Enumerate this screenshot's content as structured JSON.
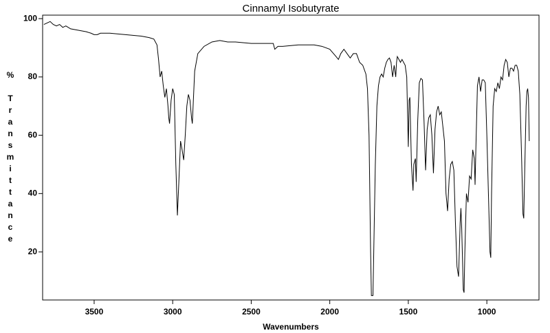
{
  "chart_data": {
    "type": "line",
    "title": "Cinnamyl Isobutyrate",
    "x_label": "Wavenumbers",
    "y_label": "% Transmittance",
    "color": "#000000",
    "xlim": [
      3828,
      668
    ],
    "ylim": [
      3.5,
      101.2
    ],
    "xticks": [
      3500,
      3000,
      2500,
      2000,
      1500,
      1000
    ],
    "yticks": [
      20,
      40,
      60,
      80,
      100
    ],
    "x": [
      3820,
      3800,
      3780,
      3760,
      3740,
      3720,
      3700,
      3680,
      3650,
      3600,
      3550,
      3520,
      3500,
      3480,
      3460,
      3400,
      3300,
      3200,
      3150,
      3120,
      3100,
      3090,
      3080,
      3070,
      3060,
      3050,
      3040,
      3030,
      3025,
      3020,
      3010,
      3000,
      2990,
      2980,
      2970,
      2960,
      2950,
      2940,
      2930,
      2920,
      2910,
      2900,
      2890,
      2880,
      2875,
      2870,
      2860,
      2840,
      2800,
      2750,
      2700,
      2650,
      2600,
      2500,
      2400,
      2360,
      2350,
      2330,
      2300,
      2200,
      2100,
      2050,
      2000,
      1960,
      1945,
      1930,
      1910,
      1890,
      1870,
      1850,
      1830,
      1810,
      1790,
      1770,
      1760,
      1750,
      1740,
      1735,
      1725,
      1720,
      1710,
      1700,
      1690,
      1680,
      1670,
      1660,
      1650,
      1640,
      1630,
      1620,
      1610,
      1600,
      1590,
      1580,
      1575,
      1570,
      1560,
      1550,
      1540,
      1520,
      1510,
      1500,
      1495,
      1490,
      1480,
      1470,
      1465,
      1455,
      1450,
      1440,
      1430,
      1420,
      1410,
      1400,
      1390,
      1380,
      1370,
      1360,
      1350,
      1340,
      1330,
      1320,
      1310,
      1300,
      1290,
      1280,
      1270,
      1260,
      1250,
      1240,
      1230,
      1220,
      1210,
      1200,
      1190,
      1180,
      1170,
      1165,
      1160,
      1150,
      1145,
      1140,
      1130,
      1120,
      1110,
      1100,
      1090,
      1080,
      1075,
      1070,
      1060,
      1050,
      1040,
      1030,
      1020,
      1010,
      1000,
      990,
      980,
      975,
      970,
      960,
      950,
      940,
      930,
      920,
      910,
      900,
      890,
      880,
      870,
      860,
      850,
      840,
      830,
      820,
      810,
      800,
      790,
      780,
      770,
      765,
      760,
      750,
      745,
      740,
      735,
      730
    ],
    "values": [
      98,
      98.5,
      99,
      98,
      97.5,
      98,
      97,
      97.5,
      96.5,
      96,
      95.5,
      95,
      94.5,
      94.5,
      95,
      95,
      94.5,
      94,
      93.5,
      93,
      91,
      86,
      80,
      82,
      77,
      73,
      76,
      70,
      66,
      64,
      72,
      76,
      74,
      50,
      32.5,
      45,
      58,
      55,
      51.5,
      60,
      70,
      74,
      72,
      66,
      64,
      70,
      82,
      88,
      90.5,
      92,
      92.5,
      92,
      92,
      91.5,
      91.5,
      91.5,
      89.5,
      90.5,
      90.5,
      91,
      91,
      90.5,
      89.5,
      87,
      86,
      88,
      89.5,
      88,
      86.5,
      88,
      88,
      85,
      84,
      81,
      76,
      60,
      20,
      5,
      5,
      20,
      50,
      70,
      77,
      80,
      81,
      80,
      83,
      85,
      86,
      86.5,
      85,
      80,
      84,
      80,
      85,
      87,
      86,
      85,
      86,
      84,
      80,
      56,
      72,
      73,
      50,
      41,
      50,
      52,
      44,
      65,
      78,
      79.5,
      79,
      65,
      48,
      62,
      66,
      67,
      60,
      47,
      62,
      68,
      70,
      67,
      68,
      63,
      58,
      40,
      34,
      45,
      50,
      51,
      48,
      30,
      15,
      11.5,
      30,
      35,
      28,
      7,
      6,
      20,
      40,
      37,
      46,
      45,
      55,
      52,
      43,
      55,
      77,
      80,
      75,
      79,
      79,
      78,
      60,
      40,
      20,
      18,
      40,
      70,
      76,
      75,
      78,
      76,
      80,
      79,
      84,
      86,
      85,
      80,
      83,
      83,
      82,
      84,
      84,
      82,
      74,
      55,
      33,
      31.5,
      45,
      70,
      75,
      76,
      73,
      58
    ]
  }
}
